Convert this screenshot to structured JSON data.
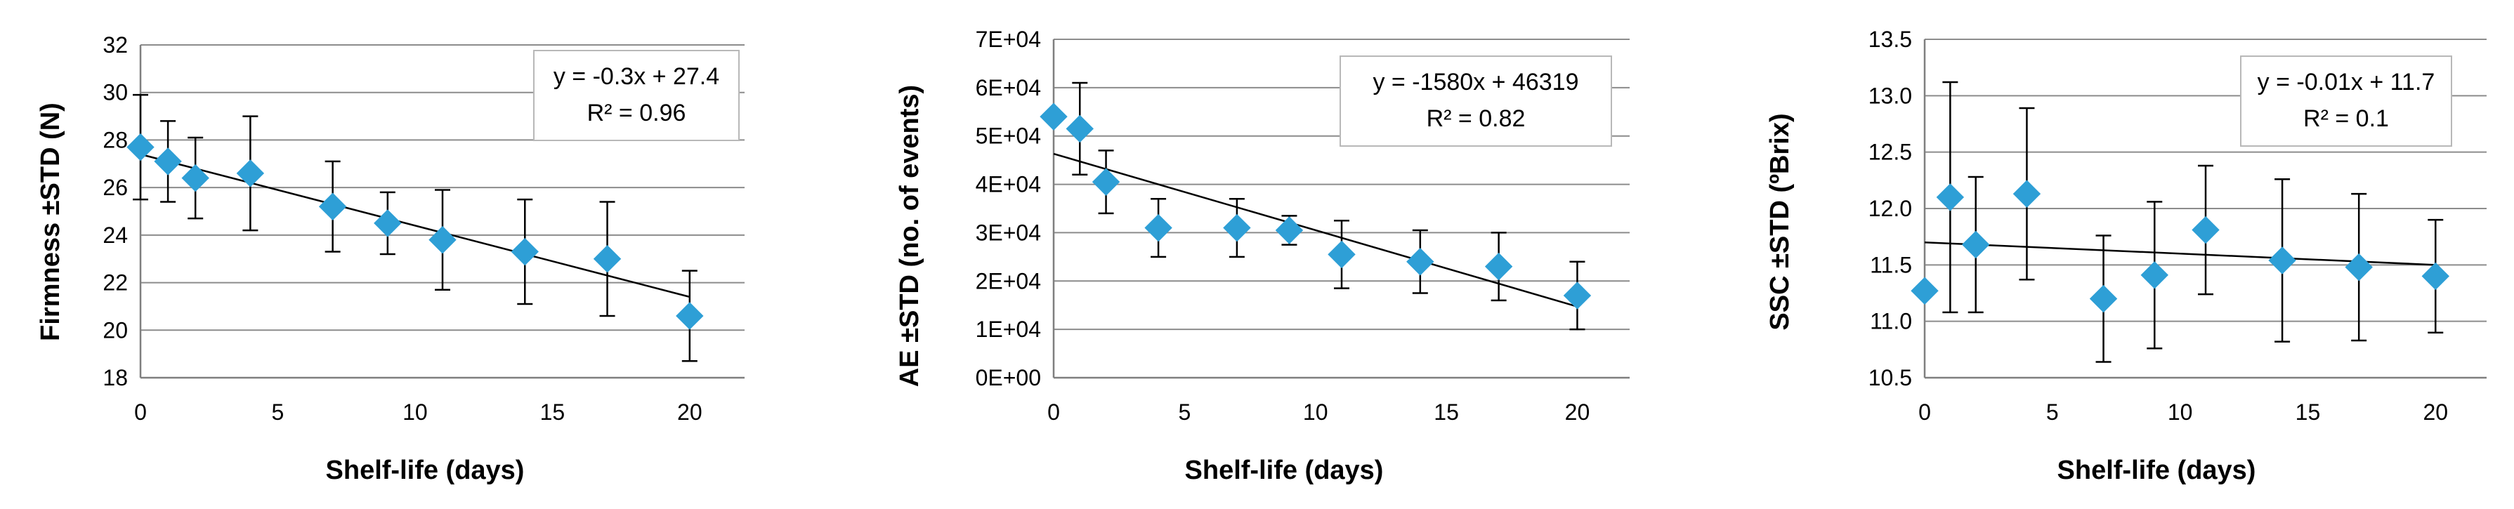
{
  "chart_data": [
    {
      "type": "scatter",
      "xlabel": "Shelf-life (days)",
      "ylabel": "Firmness ±STD (N)",
      "xlim": [
        0,
        22
      ],
      "ylim": [
        18,
        32
      ],
      "xticks": [
        0,
        5,
        10,
        15,
        20
      ],
      "yticks": [
        18,
        20,
        22,
        24,
        26,
        28,
        30,
        32
      ],
      "ytick_labels": [
        "18",
        "20",
        "22",
        "24",
        "26",
        "28",
        "30",
        "32"
      ],
      "grid": true,
      "x": [
        0,
        1,
        2,
        4,
        7,
        9,
        11,
        14,
        17,
        20
      ],
      "y": [
        27.7,
        27.1,
        26.4,
        26.6,
        25.2,
        24.5,
        23.8,
        23.3,
        23.0,
        20.6
      ],
      "err": [
        2.2,
        1.7,
        1.7,
        2.4,
        1.9,
        1.3,
        2.1,
        2.2,
        2.4,
        1.9
      ],
      "trendline": {
        "slope": -0.3,
        "intercept": 27.4
      },
      "equation": "y = -0.3x + 27.4",
      "r2": "R² = 0.96"
    },
    {
      "type": "scatter",
      "xlabel": "Shelf-life (days)",
      "ylabel": "AE ±STD (no. of events)",
      "xlim": [
        0,
        22
      ],
      "ylim": [
        0,
        70000
      ],
      "xticks": [
        0,
        5,
        10,
        15,
        20
      ],
      "yticks": [
        0,
        10000,
        20000,
        30000,
        40000,
        50000,
        60000,
        70000
      ],
      "ytick_labels": [
        "0E+00",
        "1E+04",
        "2E+04",
        "3E+04",
        "4E+04",
        "5E+04",
        "6E+04",
        "7E+04"
      ],
      "grid": true,
      "x": [
        0,
        1,
        2,
        4,
        7,
        9,
        11,
        14,
        17,
        20
      ],
      "y": [
        54000,
        51500,
        40500,
        31000,
        31000,
        30500,
        25500,
        24000,
        23000,
        17000
      ],
      "err": [
        0,
        9500,
        6500,
        6000,
        6000,
        3000,
        7000,
        6500,
        7000,
        7000
      ],
      "trendline": {
        "slope": -1580,
        "intercept": 46319
      },
      "equation": "y = -1580x + 46319",
      "r2": "R² = 0.82"
    },
    {
      "type": "scatter",
      "xlabel": "Shelf-life (days)",
      "ylabel": "SSC ±STD (ºBrix)",
      "xlim": [
        0,
        22
      ],
      "ylim": [
        10.5,
        13.5
      ],
      "xticks": [
        0,
        5,
        10,
        15,
        20
      ],
      "yticks": [
        10.5,
        11.0,
        11.5,
        12.0,
        12.5,
        13.0,
        13.5
      ],
      "ytick_labels": [
        "10.5",
        "11.0",
        "11.5",
        "12.0",
        "12.5",
        "13.0",
        "13.5"
      ],
      "grid": true,
      "x": [
        0,
        1,
        2,
        4,
        7,
        9,
        11,
        14,
        17,
        20
      ],
      "y": [
        11.27,
        12.1,
        11.68,
        12.13,
        11.2,
        11.41,
        11.81,
        11.54,
        11.48,
        11.4
      ],
      "err": [
        0,
        1.02,
        0.6,
        0.76,
        0.56,
        0.65,
        0.57,
        0.72,
        0.65,
        0.5
      ],
      "trendline": {
        "slope": -0.01,
        "intercept": 11.7
      },
      "equation": "y = -0.01x + 11.7",
      "r2": "R² = 0.1"
    }
  ]
}
